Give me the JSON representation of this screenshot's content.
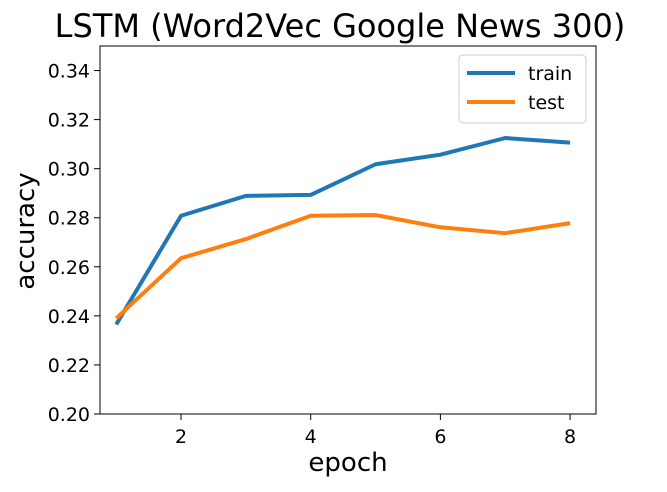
{
  "chart_data": {
    "type": "line",
    "title": "LSTM (Word2Vec Google News 300)",
    "xlabel": "epoch",
    "ylabel": "accuracy",
    "x": [
      1,
      2,
      3,
      4,
      5,
      6,
      7,
      8
    ],
    "xlim": [
      0.75,
      8.4
    ],
    "ylim": [
      0.2,
      0.35
    ],
    "xticks": [
      2,
      4,
      6,
      8
    ],
    "xtick_labels": [
      "2",
      "4",
      "6",
      "8"
    ],
    "yticks": [
      0.2,
      0.22,
      0.24,
      0.26,
      0.28,
      0.3,
      0.32,
      0.34
    ],
    "ytick_labels": [
      "0.20",
      "0.22",
      "0.24",
      "0.26",
      "0.28",
      "0.30",
      "0.32",
      "0.34"
    ],
    "grid": false,
    "legend_position": "top-right",
    "series": [
      {
        "name": "train",
        "color": "#1f77b4",
        "values": [
          0.2365,
          0.2808,
          0.2889,
          0.2893,
          0.3018,
          0.3057,
          0.3125,
          0.3106
        ]
      },
      {
        "name": "test",
        "color": "#ff7f0e",
        "values": [
          0.239,
          0.2635,
          0.2713,
          0.2808,
          0.2811,
          0.2761,
          0.2737,
          0.2778
        ]
      }
    ]
  }
}
